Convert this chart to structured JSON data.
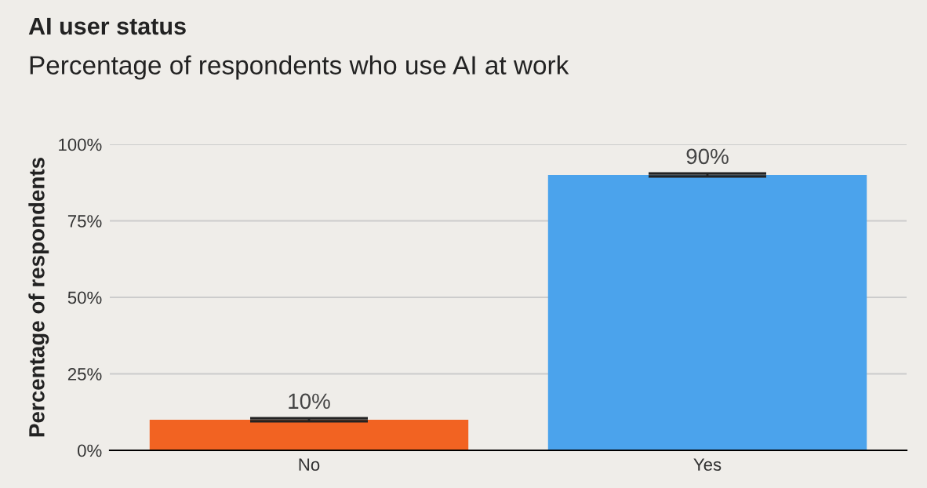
{
  "chart_data": {
    "type": "bar",
    "title": "AI user status",
    "subtitle": "Percentage of respondents who use AI at work",
    "ylabel": "Percentage of respondents",
    "categories": [
      "No",
      "Yes"
    ],
    "values": [
      10,
      90
    ],
    "colors": [
      "#f26322",
      "#4ba3ec"
    ],
    "errors": [
      0.5,
      0.5
    ],
    "value_labels": [
      "10%",
      "90%"
    ],
    "ylim": [
      0,
      100
    ],
    "yticks": [
      {
        "value": 0,
        "label": "0%"
      },
      {
        "value": 25,
        "label": "25%"
      },
      {
        "value": 50,
        "label": "50%"
      },
      {
        "value": 75,
        "label": "75%"
      },
      {
        "value": 100,
        "label": "100%"
      }
    ],
    "grid": "y",
    "legend": false
  }
}
